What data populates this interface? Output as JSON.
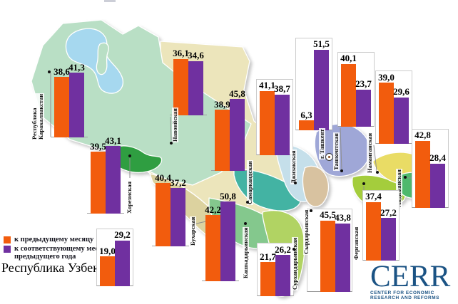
{
  "legend": {
    "orange_label": "к предыдущему месяцу",
    "purple_label": "к соответствующему месяцу предыдущего года",
    "orange_color": "#f25c0d",
    "purple_color": "#7030a0"
  },
  "country_label": "Республика Узбекистан",
  "logo": {
    "text": "CERR",
    "line1": "CENTER FOR ECONOMIC",
    "line2": "RESEARCH AND REFORMS",
    "color": "#1b5384"
  },
  "map": {
    "colors": {
      "karakalpakstan": "#b9dfc5",
      "aral_sea": "#a6d8ef",
      "aral_island": "#b9dfc5",
      "khorezm": "#2f9e41",
      "navoi": "#ece5bb",
      "bukhara": "#dcd29f",
      "kashkadarya": "#84c88d",
      "surkhandarya": "#b1d363",
      "samarkand": "#43b3a3",
      "jizzakh": "#c5dfea",
      "syrdarya": "#d8c2a0",
      "tashkent_region": "#9fa7d7",
      "namangan": "#e9dc65",
      "andijan": "#4eb96d",
      "fergana": "#a4cd3c"
    }
  },
  "chart_data": {
    "type": "bar",
    "series": [
      "к предыдущему месяцу",
      "к соответствующему месяцу предыдущего года"
    ],
    "value_format": "comma-decimal",
    "regions": [
      {
        "id": "karakalpakstan",
        "name": "Республика Каракалпакстан",
        "name_lines": [
          "Республика",
          "Каракалпакстан"
        ],
        "values": [
          "38,6",
          "41,3"
        ]
      },
      {
        "id": "khorezm",
        "name": "Хорезмская",
        "values": [
          "39,5",
          "43,1"
        ]
      },
      {
        "id": "navoi",
        "name": "Навоийская",
        "values": [
          "36,1",
          "34,6"
        ]
      },
      {
        "id": "bukhara",
        "name": "Бухарская",
        "values": [
          "40,4",
          "37,2"
        ]
      },
      {
        "id": "samarkand",
        "name": "Самаркандская",
        "values": [
          "38,9",
          "45,8"
        ]
      },
      {
        "id": "jizzakh",
        "name": "Джизакская",
        "values": [
          "41,1",
          "38,7"
        ]
      },
      {
        "id": "tashkent_city",
        "name": "г. Ташкент",
        "values": [
          "6,3",
          "51,5"
        ]
      },
      {
        "id": "tashkent_region",
        "name": "Ташкентская",
        "values": [
          "40,1",
          "23,7"
        ]
      },
      {
        "id": "namangan",
        "name": "Наманганская",
        "values": [
          "39,0",
          "29,6"
        ]
      },
      {
        "id": "andijan",
        "name": "Андижанская",
        "values": [
          "42,8",
          "28,4"
        ]
      },
      {
        "id": "fergana",
        "name": "Ферганская",
        "values": [
          "37,4",
          "27,2"
        ]
      },
      {
        "id": "kashkadarya",
        "name": "Кашкадарьинская",
        "values": [
          "42,2",
          "50,8"
        ]
      },
      {
        "id": "surkhandarya",
        "name": "Сурхандарьинская",
        "values": [
          "21,7",
          "26,2"
        ]
      },
      {
        "id": "syrdarya",
        "name": "Сырдарьинская",
        "values": [
          "45,5",
          "43,8"
        ]
      },
      {
        "id": "uzbekistan",
        "name": "Республика Узбекистан",
        "values": [
          "19,0",
          "29,2"
        ]
      }
    ]
  }
}
